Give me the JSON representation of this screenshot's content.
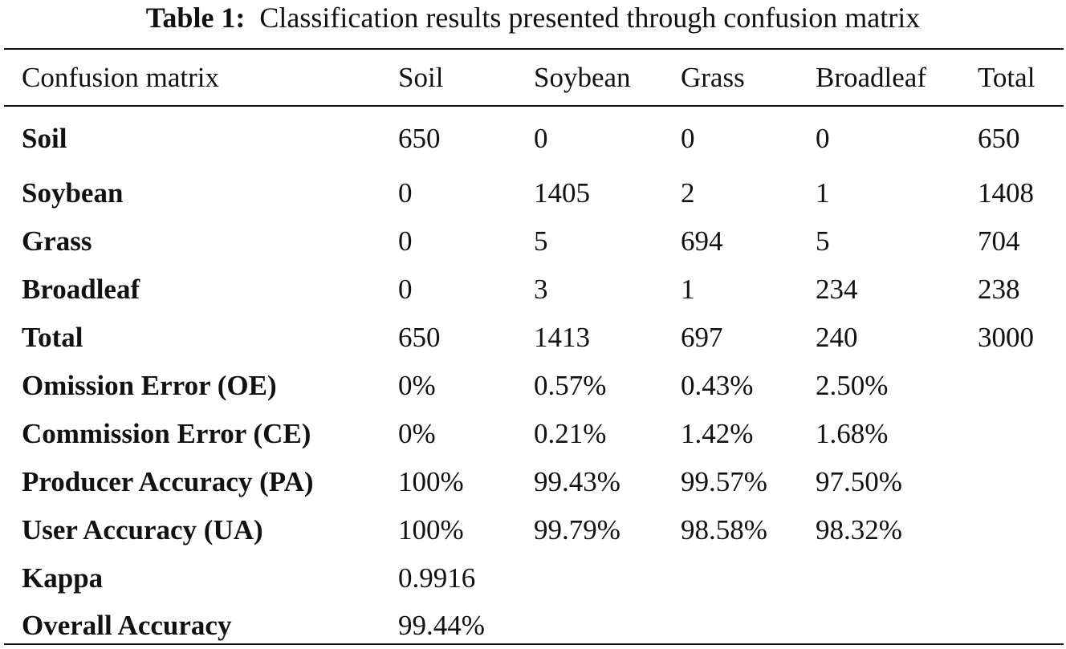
{
  "caption": {
    "label": "Table 1:",
    "text": "Classification results presented through confusion matrix"
  },
  "header": [
    "Confusion matrix",
    "Soil",
    "Soybean",
    "Grass",
    "Broadleaf",
    "Total"
  ],
  "rows": [
    {
      "label": "Soil",
      "cells": [
        "650",
        "0",
        "0",
        "0",
        "650"
      ]
    },
    {
      "label": "Soybean",
      "cells": [
        "0",
        "1405",
        "2",
        "1",
        "1408"
      ]
    },
    {
      "label": "Grass",
      "cells": [
        "0",
        "5",
        "694",
        "5",
        "704"
      ]
    },
    {
      "label": "Broadleaf",
      "cells": [
        "0",
        "3",
        "1",
        "234",
        "238"
      ]
    },
    {
      "label": "Total",
      "cells": [
        "650",
        "1413",
        "697",
        "240",
        "3000"
      ]
    },
    {
      "label": "Omission Error (OE)",
      "cells": [
        "0%",
        "0.57%",
        "0.43%",
        "2.50%",
        ""
      ]
    },
    {
      "label": "Commission Error (CE)",
      "cells": [
        "0%",
        "0.21%",
        "1.42%",
        "1.68%",
        ""
      ]
    },
    {
      "label": "Producer Accuracy (PA)",
      "cells": [
        "100%",
        "99.43%",
        "99.57%",
        "97.50%",
        ""
      ]
    },
    {
      "label": "User Accuracy (UA)",
      "cells": [
        "100%",
        "99.79%",
        "98.58%",
        "98.32%",
        ""
      ]
    },
    {
      "label": "Kappa",
      "cells": [
        "0.9916",
        "",
        "",
        "",
        ""
      ]
    },
    {
      "label": "Overall Accuracy",
      "cells": [
        "99.44%",
        "",
        "",
        "",
        ""
      ]
    }
  ]
}
